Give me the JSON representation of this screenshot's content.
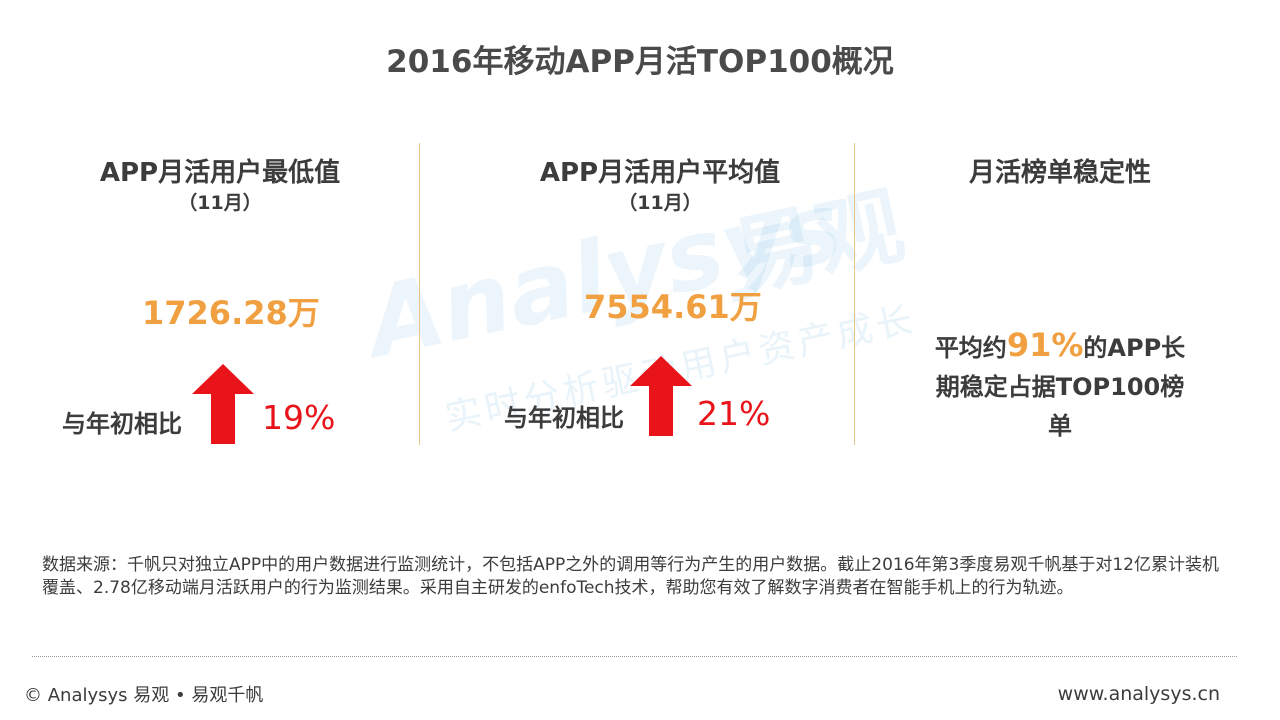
{
  "title": "2016年移动APP月活TOP100概况",
  "watermark": {
    "logo": "Analysys",
    "brand": "易观",
    "slogan": "实时分析驱动用户资产成长"
  },
  "panels": [
    {
      "title": "APP月活用户最低值",
      "subtitle": "（11月）",
      "value": "1726.28万",
      "compare_label": "与年初相比",
      "change": "19%",
      "trend": "up"
    },
    {
      "title": "APP月活用户平均值",
      "subtitle": "（11月）",
      "value": "7554.61万",
      "compare_label": "与年初相比",
      "change": "21%",
      "trend": "up"
    },
    {
      "title": "月活榜单稳定性",
      "text_before": "平均约",
      "highlight": "91%",
      "text_after": "的APP长期稳定占据TOP100榜单"
    }
  ],
  "source_note": "数据来源：千帆只对独立APP中的用户数据进行监测统计，不包括APP之外的调用等行为产生的用户数据。截止2016年第3季度易观千帆基于对12亿累计装机覆盖、2.78亿移动端月活跃用户的行为监测结果。采用自主研发的enfoTech技术，帮助您有效了解数字消费者在智能手机上的行为轨迹。",
  "footer": {
    "left": "© Analysys 易观 • 易观千帆",
    "right": "www.analysys.cn"
  },
  "colors": {
    "accent_orange": "#f0a040",
    "arrow_red": "#e8141a",
    "divider": "#e6c48a"
  }
}
